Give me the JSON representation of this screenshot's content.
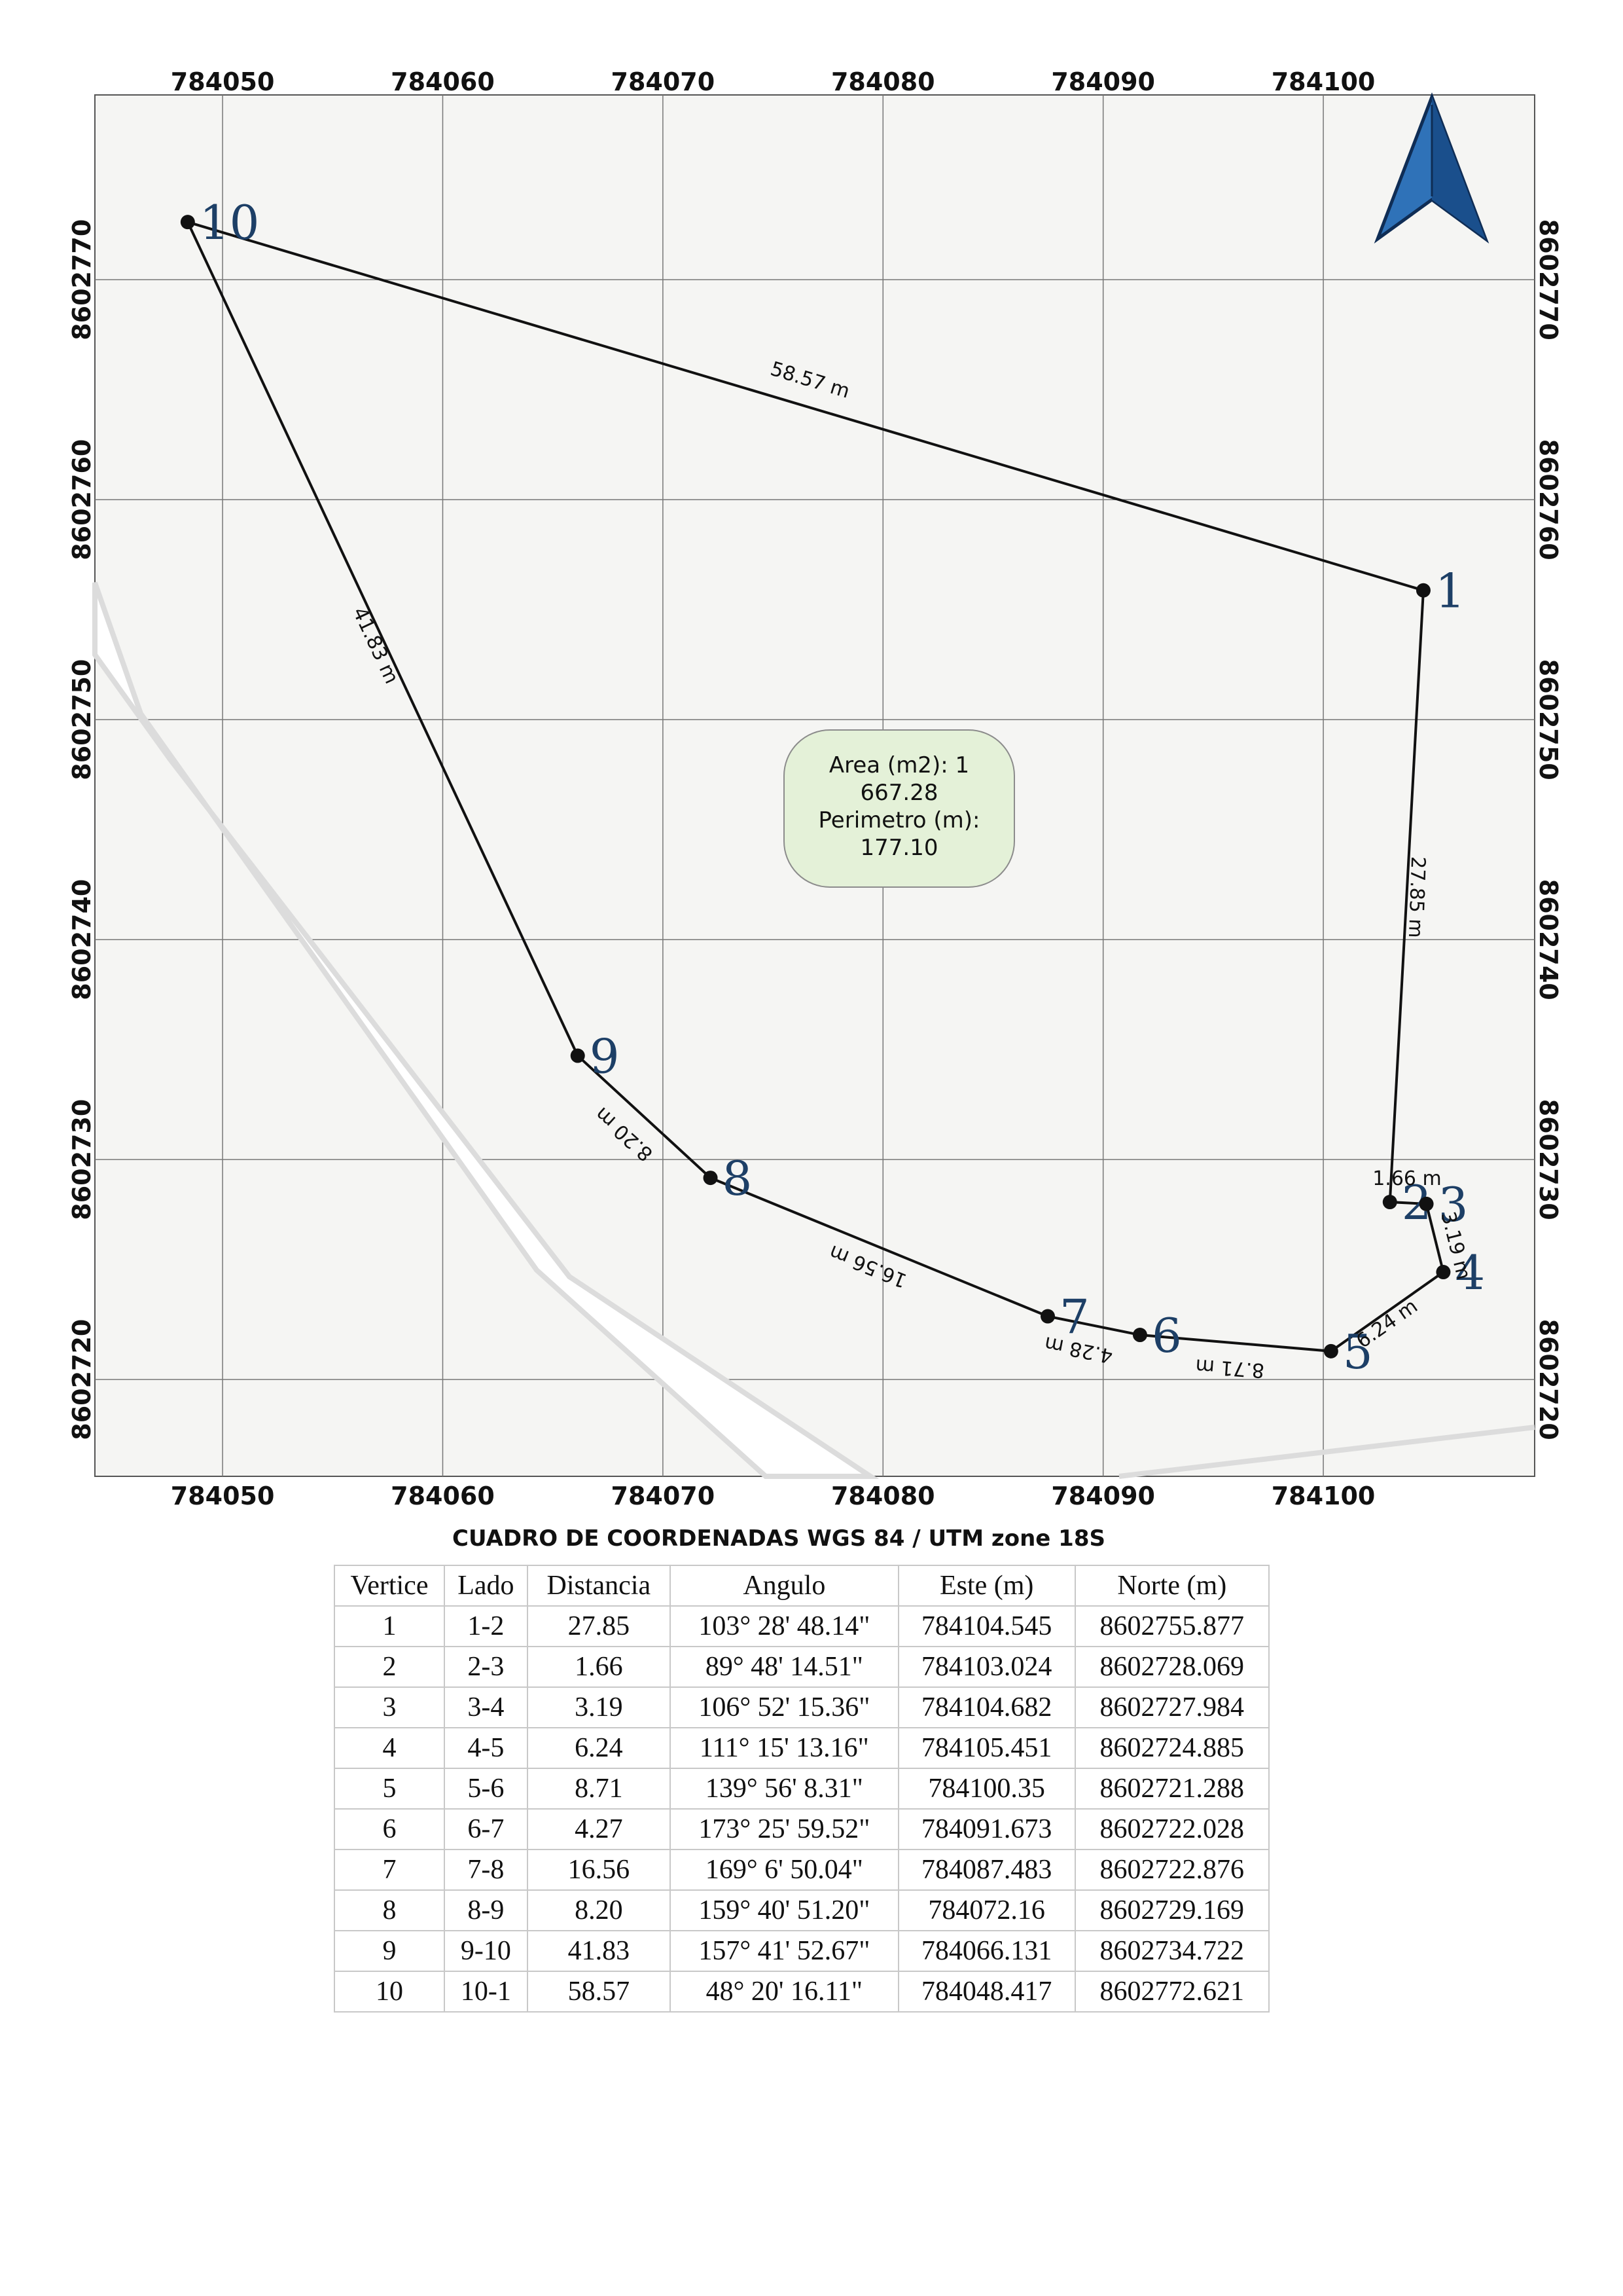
{
  "map": {
    "x_ticks": [
      "784050",
      "784060",
      "784070",
      "784080",
      "784090",
      "784100"
    ],
    "y_ticks": [
      "8602770",
      "8602760",
      "8602750",
      "8602740",
      "8602730",
      "8602720"
    ],
    "x_tick_values": [
      784050,
      784060,
      784070,
      784080,
      784090,
      784100
    ],
    "y_tick_values": [
      8602770,
      8602760,
      8602750,
      8602740,
      8602730,
      8602720
    ],
    "x_range": [
      784044.2,
      784109.6
    ],
    "y_range": [
      8602715.6,
      8602778.4
    ],
    "north_arrow": "north-arrow-icon",
    "info_box": {
      "line1": "Area (m2): 1",
      "line2": "667.28",
      "line3": "Perimetro (m):",
      "line4": "177.10"
    },
    "colors": {
      "vertex_label": "#1d3f66",
      "info_fill": "#e4f1d8",
      "background": "#f5f5f3"
    },
    "vertices": [
      {
        "label": "1",
        "este": 784104.545,
        "norte": 8602755.877
      },
      {
        "label": "2",
        "este": 784103.024,
        "norte": 8602728.069
      },
      {
        "label": "3",
        "este": 784104.682,
        "norte": 8602727.984
      },
      {
        "label": "4",
        "este": 784105.451,
        "norte": 8602724.885
      },
      {
        "label": "5",
        "este": 784100.35,
        "norte": 8602721.288
      },
      {
        "label": "6",
        "este": 784091.673,
        "norte": 8602722.028
      },
      {
        "label": "7",
        "este": 784087.483,
        "norte": 8602722.876
      },
      {
        "label": "8",
        "este": 784072.16,
        "norte": 8602729.169
      },
      {
        "label": "9",
        "este": 784066.131,
        "norte": 8602734.722
      },
      {
        "label": "10",
        "este": 784048.417,
        "norte": 8602772.621
      }
    ],
    "side_labels": [
      "27.85 m",
      "1.66 m",
      "3.19 m",
      "6.24 m",
      "8.71 m",
      "4.28 m",
      "16.56 m",
      "8.20 m",
      "41.83 m",
      "58.57 m"
    ]
  },
  "table": {
    "title": "CUADRO DE COORDENADAS WGS 84 / UTM zone 18S",
    "headers": [
      "Vertice",
      "Lado",
      "Distancia",
      "Angulo",
      "Este (m)",
      "Norte (m)"
    ],
    "rows": [
      [
        "1",
        "1-2",
        "27.85",
        "103° 28' 48.14\"",
        "784104.545",
        "8602755.877"
      ],
      [
        "2",
        "2-3",
        "1.66",
        "89° 48' 14.51\"",
        "784103.024",
        "8602728.069"
      ],
      [
        "3",
        "3-4",
        "3.19",
        "106° 52' 15.36\"",
        "784104.682",
        "8602727.984"
      ],
      [
        "4",
        "4-5",
        "6.24",
        "111° 15' 13.16\"",
        "784105.451",
        "8602724.885"
      ],
      [
        "5",
        "5-6",
        "8.71",
        "139° 56' 8.31\"",
        "784100.35",
        "8602721.288"
      ],
      [
        "6",
        "6-7",
        "4.27",
        "173° 25' 59.52\"",
        "784091.673",
        "8602722.028"
      ],
      [
        "7",
        "7-8",
        "16.56",
        "169° 6' 50.04\"",
        "784087.483",
        "8602722.876"
      ],
      [
        "8",
        "8-9",
        "8.20",
        "159° 40' 51.20\"",
        "784072.16",
        "8602729.169"
      ],
      [
        "9",
        "9-10",
        "41.83",
        "157° 41' 52.67\"",
        "784066.131",
        "8602734.722"
      ],
      [
        "10",
        "10-1",
        "58.57",
        "48° 20' 16.11\"",
        "784048.417",
        "8602772.621"
      ]
    ]
  }
}
